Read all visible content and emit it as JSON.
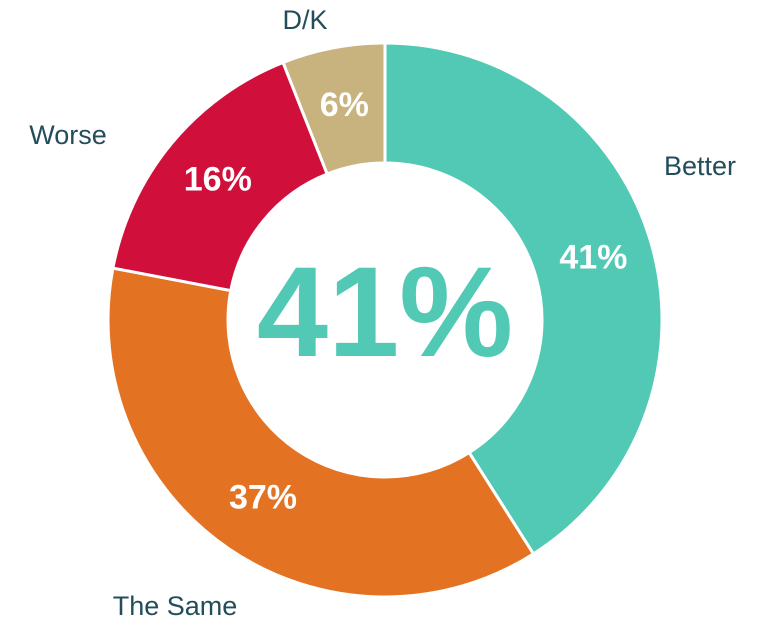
{
  "chart_data": {
    "type": "donut",
    "categories": [
      "Better",
      "The Same",
      "Worse",
      "D/K"
    ],
    "values": [
      41,
      37,
      16,
      6
    ],
    "value_labels": [
      "41%",
      "37%",
      "16%",
      "6%"
    ],
    "colors": [
      "#52c9b5",
      "#e37322",
      "#d0103a",
      "#c8b27e"
    ],
    "center_label": "41%"
  }
}
